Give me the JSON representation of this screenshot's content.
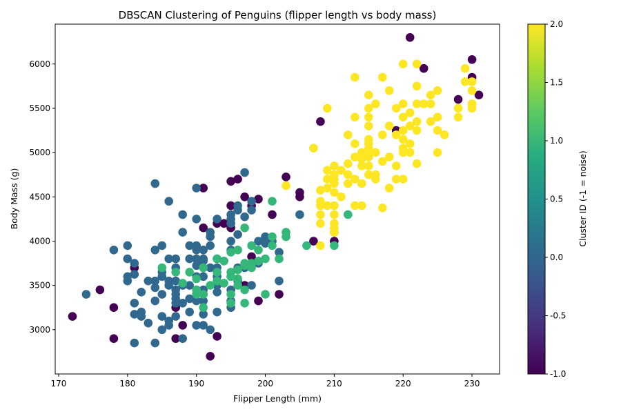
{
  "chart_data": {
    "type": "scatter",
    "title": "DBSCAN Clustering of Penguins (flipper length vs body mass)",
    "xlabel": "Flipper Length (mm)",
    "ylabel": "Body Mass (g)",
    "xlim": [
      169.5,
      234
    ],
    "ylim": [
      2500,
      6450
    ],
    "xticks": [
      170,
      180,
      190,
      200,
      210,
      220,
      230
    ],
    "yticks": [
      3000,
      3500,
      4000,
      4500,
      5000,
      5500,
      6000
    ],
    "grid": false,
    "colorbar": {
      "label": "Cluster ID (-1 = noise)",
      "range": [
        -1.0,
        2.0
      ],
      "ticks": [
        "-1.0",
        "-0.5",
        "0.0",
        "0.5",
        "1.0",
        "1.5",
        "2.0"
      ],
      "colormap": "viridis",
      "colors": [
        "#440154",
        "#3b528b",
        "#21918c",
        "#5ec962",
        "#fde725"
      ]
    },
    "series": [
      {
        "cluster": -1,
        "color": "#440154",
        "points": [
          [
            172,
            3150
          ],
          [
            176,
            3450
          ],
          [
            178,
            3250
          ],
          [
            178,
            2900
          ],
          [
            181,
            3700
          ],
          [
            187,
            2900
          ],
          [
            187,
            3250
          ],
          [
            188,
            3050
          ],
          [
            191,
            4600
          ],
          [
            191,
            4150
          ],
          [
            192,
            2700
          ],
          [
            193,
            4200
          ],
          [
            193,
            2925
          ],
          [
            194,
            4200
          ],
          [
            195,
            4400
          ],
          [
            195,
            4150
          ],
          [
            196,
            4700
          ],
          [
            195,
            4675
          ],
          [
            197,
            4500
          ],
          [
            198,
            4400
          ],
          [
            198,
            3825
          ],
          [
            199,
            4475
          ],
          [
            199,
            3325
          ],
          [
            197,
            3500
          ],
          [
            201,
            4300
          ],
          [
            202,
            3400
          ],
          [
            203,
            4725
          ],
          [
            205,
            4550
          ],
          [
            205,
            4500
          ],
          [
            207,
            4000
          ],
          [
            208,
            5350
          ],
          [
            210,
            4000
          ],
          [
            219,
            5250
          ],
          [
            221,
            6300
          ],
          [
            223,
            5950
          ],
          [
            228,
            5600
          ],
          [
            230,
            6050
          ],
          [
            230,
            5850
          ],
          [
            231,
            5650
          ]
        ]
      },
      {
        "cluster": 0,
        "color": "#31688e",
        "points": [
          [
            174,
            3400
          ],
          [
            178,
            3900
          ],
          [
            180,
            3950
          ],
          [
            180,
            3800
          ],
          [
            180,
            3600
          ],
          [
            180,
            3550
          ],
          [
            181,
            3750
          ],
          [
            181,
            3625
          ],
          [
            181,
            3300
          ],
          [
            181,
            3175
          ],
          [
            181,
            2850
          ],
          [
            182,
            3425
          ],
          [
            182,
            3200
          ],
          [
            182,
            3150
          ],
          [
            183,
            3550
          ],
          [
            183,
            3075
          ],
          [
            184,
            4650
          ],
          [
            184,
            3900
          ],
          [
            184,
            3550
          ],
          [
            184,
            3475
          ],
          [
            184,
            3325
          ],
          [
            184,
            2850
          ],
          [
            185,
            3950
          ],
          [
            185,
            3650
          ],
          [
            185,
            3600
          ],
          [
            185,
            3400
          ],
          [
            185,
            3150
          ],
          [
            185,
            3000
          ],
          [
            186,
            4450
          ],
          [
            186,
            3800
          ],
          [
            186,
            3550
          ],
          [
            186,
            3500
          ],
          [
            186,
            3100
          ],
          [
            186,
            3050
          ],
          [
            187,
            3800
          ],
          [
            187,
            3700
          ],
          [
            187,
            3550
          ],
          [
            187,
            3450
          ],
          [
            187,
            3400
          ],
          [
            187,
            3350
          ],
          [
            187,
            3300
          ],
          [
            187,
            3150
          ],
          [
            188,
            4300
          ],
          [
            188,
            4100
          ],
          [
            188,
            3500
          ],
          [
            188,
            3300
          ],
          [
            188,
            2900
          ],
          [
            189,
            3950
          ],
          [
            189,
            3800
          ],
          [
            189,
            3500
          ],
          [
            189,
            3350
          ],
          [
            189,
            3200
          ],
          [
            190,
            4600
          ],
          [
            190,
            4250
          ],
          [
            190,
            3950
          ],
          [
            190,
            3900
          ],
          [
            190,
            3800
          ],
          [
            190,
            3725
          ],
          [
            190,
            3600
          ],
          [
            190,
            3450
          ],
          [
            190,
            3325
          ],
          [
            190,
            3050
          ],
          [
            191,
            3900
          ],
          [
            191,
            3800
          ],
          [
            191,
            3775
          ],
          [
            191,
            3700
          ],
          [
            191,
            3600
          ],
          [
            191,
            3450
          ],
          [
            191,
            3400
          ],
          [
            191,
            3325
          ],
          [
            191,
            3175
          ],
          [
            191,
            3050
          ],
          [
            192,
            4100
          ],
          [
            192,
            4050
          ],
          [
            192,
            3950
          ],
          [
            192,
            3700
          ],
          [
            192,
            3000
          ],
          [
            193,
            4250
          ],
          [
            193,
            3800
          ],
          [
            193,
            3700
          ],
          [
            193,
            3600
          ],
          [
            193,
            3500
          ],
          [
            193,
            3425
          ],
          [
            193,
            3200
          ],
          [
            194,
            3775
          ],
          [
            195,
            4300
          ],
          [
            195,
            4250
          ],
          [
            195,
            4200
          ],
          [
            195,
            4000
          ],
          [
            195,
            3900
          ],
          [
            195,
            3600
          ],
          [
            195,
            3450
          ],
          [
            195,
            3325
          ],
          [
            195,
            3250
          ],
          [
            196,
            4400
          ],
          [
            196,
            4350
          ],
          [
            196,
            4075
          ],
          [
            196,
            3700
          ],
          [
            196,
            3550
          ],
          [
            197,
            4775
          ],
          [
            197,
            4275
          ],
          [
            197,
            3700
          ],
          [
            198,
            4450
          ],
          [
            198,
            4350
          ],
          [
            198,
            3500
          ],
          [
            199,
            4000
          ],
          [
            199,
            3750
          ],
          [
            200,
            4050
          ],
          [
            200,
            3975
          ],
          [
            201,
            4000
          ],
          [
            202,
            3875
          ],
          [
            202,
            3550
          ],
          [
            205,
            4300
          ]
        ]
      },
      {
        "cluster": 1,
        "color": "#35b779",
        "points": [
          [
            185,
            3700
          ],
          [
            187,
            3650
          ],
          [
            188,
            3525
          ],
          [
            189,
            3650
          ],
          [
            190,
            3575
          ],
          [
            190,
            3450
          ],
          [
            190,
            3400
          ],
          [
            191,
            3700
          ],
          [
            191,
            3400
          ],
          [
            191,
            3250
          ],
          [
            192,
            3500
          ],
          [
            193,
            3800
          ],
          [
            193,
            3650
          ],
          [
            193,
            3550
          ],
          [
            194,
            3775
          ],
          [
            194,
            3525
          ],
          [
            195,
            3875
          ],
          [
            195,
            3650
          ],
          [
            195,
            3600
          ],
          [
            195,
            3400
          ],
          [
            195,
            3300
          ],
          [
            196,
            3675
          ],
          [
            196,
            3575
          ],
          [
            196,
            3500
          ],
          [
            196,
            3900
          ],
          [
            197,
            4150
          ],
          [
            197,
            3750
          ],
          [
            197,
            3725
          ],
          [
            197,
            3450
          ],
          [
            197,
            3300
          ],
          [
            198,
            3950
          ],
          [
            198,
            3750
          ],
          [
            198,
            3700
          ],
          [
            199,
            3900
          ],
          [
            199,
            3775
          ],
          [
            200,
            3800
          ],
          [
            200,
            3400
          ],
          [
            201,
            4450
          ],
          [
            201,
            4050
          ],
          [
            201,
            3950
          ],
          [
            202,
            3800
          ],
          [
            203,
            4100
          ],
          [
            203,
            4050
          ],
          [
            206,
            3950
          ],
          [
            210,
            4100
          ],
          [
            210,
            3950
          ],
          [
            212,
            4300
          ]
        ]
      },
      {
        "cluster": 2,
        "color": "#fde725",
        "points": [
          [
            203,
            4625
          ],
          [
            207,
            5050
          ],
          [
            208,
            4575
          ],
          [
            208,
            4450
          ],
          [
            208,
            4400
          ],
          [
            208,
            4300
          ],
          [
            208,
            4200
          ],
          [
            208,
            3950
          ],
          [
            209,
            5500
          ],
          [
            209,
            4800
          ],
          [
            209,
            4700
          ],
          [
            209,
            4600
          ],
          [
            209,
            4400
          ],
          [
            210,
            4850
          ],
          [
            210,
            4750
          ],
          [
            210,
            4700
          ],
          [
            210,
            4650
          ],
          [
            210,
            4550
          ],
          [
            210,
            4400
          ],
          [
            210,
            4300
          ],
          [
            210,
            4200
          ],
          [
            210,
            4150
          ],
          [
            210,
            4100
          ],
          [
            211,
            4800
          ],
          [
            211,
            4500
          ],
          [
            212,
            5200
          ],
          [
            212,
            4875
          ],
          [
            212,
            4750
          ],
          [
            212,
            4650
          ],
          [
            213,
            5850
          ],
          [
            213,
            5400
          ],
          [
            213,
            5100
          ],
          [
            213,
            4950
          ],
          [
            213,
            4700
          ],
          [
            213,
            4400
          ],
          [
            214,
            5000
          ],
          [
            214,
            4925
          ],
          [
            214,
            4850
          ],
          [
            214,
            4650
          ],
          [
            214,
            4400
          ],
          [
            215,
            5650
          ],
          [
            215,
            5500
          ],
          [
            215,
            5400
          ],
          [
            215,
            5300
          ],
          [
            215,
            5150
          ],
          [
            215,
            5100
          ],
          [
            215,
            5050
          ],
          [
            215,
            5000
          ],
          [
            215,
            4950
          ],
          [
            215,
            4850
          ],
          [
            215,
            4750
          ],
          [
            216,
            5550
          ],
          [
            216,
            5000
          ],
          [
            216,
            4750
          ],
          [
            216,
            4700
          ],
          [
            217,
            5850
          ],
          [
            217,
            5200
          ],
          [
            217,
            4900
          ],
          [
            217,
            4375
          ],
          [
            218,
            5700
          ],
          [
            218,
            5300
          ],
          [
            218,
            4950
          ],
          [
            218,
            4600
          ],
          [
            219,
            5500
          ],
          [
            219,
            5200
          ],
          [
            219,
            4850
          ],
          [
            219,
            4700
          ],
          [
            220,
            6000
          ],
          [
            220,
            5550
          ],
          [
            220,
            5400
          ],
          [
            220,
            5250
          ],
          [
            220,
            5150
          ],
          [
            220,
            5050
          ],
          [
            220,
            5000
          ],
          [
            220,
            4700
          ],
          [
            221,
            5450
          ],
          [
            221,
            5300
          ],
          [
            221,
            5100
          ],
          [
            221,
            5000
          ],
          [
            222,
            6000
          ],
          [
            222,
            5750
          ],
          [
            222,
            5550
          ],
          [
            222,
            5350
          ],
          [
            222,
            5250
          ],
          [
            222,
            4875
          ],
          [
            223,
            5550
          ],
          [
            224,
            5650
          ],
          [
            224,
            5550
          ],
          [
            224,
            5350
          ],
          [
            225,
            5700
          ],
          [
            225,
            5400
          ],
          [
            225,
            5250
          ],
          [
            225,
            5000
          ],
          [
            226,
            5200
          ],
          [
            228,
            5500
          ],
          [
            228,
            5400
          ],
          [
            229,
            5950
          ],
          [
            229,
            5800
          ],
          [
            230,
            5800
          ],
          [
            230,
            5700
          ],
          [
            230,
            5550
          ],
          [
            230,
            5500
          ]
        ]
      }
    ]
  }
}
